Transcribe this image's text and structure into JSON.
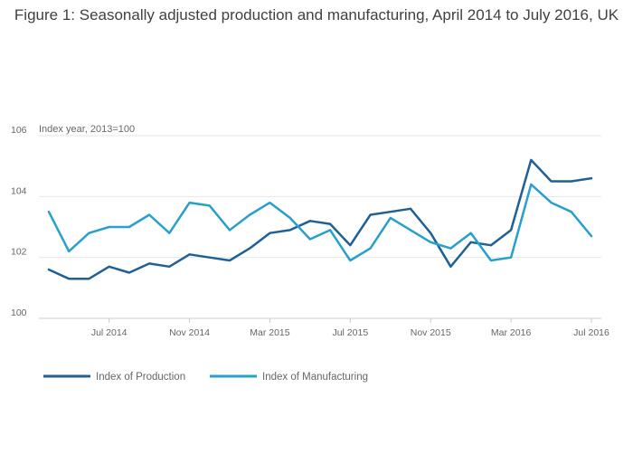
{
  "chart_data": {
    "type": "line",
    "title": "Figure 1: Seasonally adjusted production and manufacturing, April 2014 to July 2016, UK",
    "ylabel": "Index year, 2013=100",
    "xlabel": "",
    "ylim": [
      100,
      106
    ],
    "yticks": [
      "100",
      "102",
      "104",
      "106"
    ],
    "xtick_labels": [
      "Jul 2014",
      "Nov 2014",
      "Mar 2015",
      "Jul 2015",
      "Nov 2015",
      "Mar 2016",
      "Jul 2016"
    ],
    "xtick_positions": [
      3,
      7,
      11,
      15,
      19,
      23,
      27
    ],
    "x": [
      "Apr 2014",
      "May 2014",
      "Jun 2014",
      "Jul 2014",
      "Aug 2014",
      "Sep 2014",
      "Oct 2014",
      "Nov 2014",
      "Dec 2014",
      "Jan 2015",
      "Feb 2015",
      "Mar 2015",
      "Apr 2015",
      "May 2015",
      "Jun 2015",
      "Jul 2015",
      "Aug 2015",
      "Sep 2015",
      "Oct 2015",
      "Nov 2015",
      "Dec 2015",
      "Jan 2016",
      "Feb 2016",
      "Mar 2016",
      "Apr 2016",
      "May 2016",
      "Jun 2016",
      "Jul 2016"
    ],
    "series": [
      {
        "name": "Index of Production",
        "color": "#206095",
        "values": [
          101.6,
          101.3,
          101.3,
          101.7,
          101.5,
          101.8,
          101.7,
          102.1,
          102.0,
          101.9,
          102.3,
          102.8,
          102.9,
          103.2,
          103.1,
          102.4,
          103.4,
          103.5,
          103.6,
          102.8,
          101.7,
          102.5,
          102.4,
          102.9,
          105.2,
          104.5,
          104.5,
          104.6
        ]
      },
      {
        "name": "Index of Manufacturing",
        "color": "#27A0CC",
        "values": [
          103.5,
          102.2,
          102.8,
          103.0,
          103.0,
          103.4,
          102.8,
          103.8,
          103.7,
          102.9,
          103.4,
          103.8,
          103.3,
          102.6,
          102.9,
          101.9,
          102.3,
          103.3,
          102.9,
          102.5,
          102.3,
          102.8,
          101.9,
          102.0,
          104.4,
          103.8,
          103.5,
          102.7
        ]
      }
    ],
    "grid": true,
    "legend": "bottom-left"
  }
}
